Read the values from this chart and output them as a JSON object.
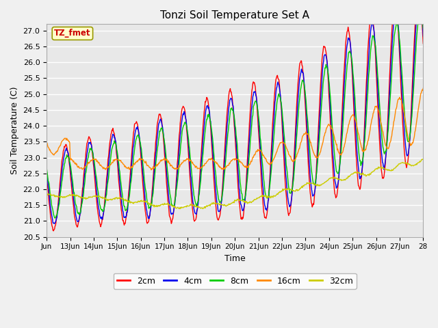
{
  "title": "Tonzi Soil Temperature Set A",
  "xlabel": "Time",
  "ylabel": "Soil Temperature (C)",
  "ylim": [
    20.5,
    27.2
  ],
  "background_color": "#f0f0f0",
  "plot_bg_color": "#e8e8e8",
  "annotation_text": "TZ_fmet",
  "annotation_color": "#cc0000",
  "annotation_bg": "#ffffcc",
  "annotation_edge": "#999900",
  "colors": {
    "2cm": "#ff0000",
    "4cm": "#0000ee",
    "8cm": "#00cc00",
    "16cm": "#ff8800",
    "32cm": "#cccc00"
  },
  "tick_labels": [
    "Jun",
    "13Jun",
    "14Jun",
    "15Jun",
    "16Jun",
    "17Jun",
    "18Jun",
    "19Jun",
    "20Jun",
    "21Jun",
    "22Jun",
    "23Jun",
    "24Jun",
    "25Jun",
    "26Jun",
    "27Jun",
    "28"
  ],
  "num_days": 16,
  "points_per_day": 48
}
